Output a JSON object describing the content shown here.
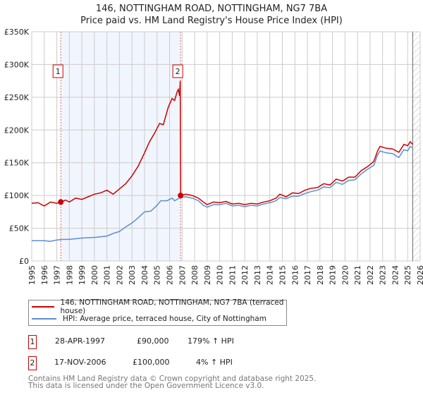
{
  "title": [
    "146, NOTTINGHAM ROAD, NOTTINGHAM, NG7 7BA",
    "Price paid vs. HM Land Registry's House Price Index (HPI)"
  ],
  "legend": [
    {
      "label": "146, NOTTINGHAM ROAD, NOTTINGHAM, NG7 7BA (terraced house)",
      "color": "#cc0000"
    },
    {
      "label": "HPI: Average price, terraced house, City of Nottingham",
      "color": "#5b8fd0"
    }
  ],
  "sales": [
    {
      "num": "1",
      "date": "28-APR-1997",
      "price": "£90,000",
      "hpi": "179% ↑ HPI"
    },
    {
      "num": "2",
      "date": "17-NOV-2006",
      "price": "£100,000",
      "hpi": "4% ↑ HPI"
    }
  ],
  "footer": [
    "Contains HM Land Registry data © Crown copyright and database right 2025.",
    "This data is licensed under the Open Government Licence v3.0."
  ],
  "chart_data": {
    "type": "line",
    "title": "Price paid vs. HM Land Registry's House Price Index (HPI)",
    "xlim": [
      1995,
      2026
    ],
    "ylim": [
      0,
      350000
    ],
    "x_ticks": [
      "1995",
      "1996",
      "1997",
      "1998",
      "1999",
      "2000",
      "2001",
      "2002",
      "2003",
      "2004",
      "2005",
      "2006",
      "2007",
      "2008",
      "2009",
      "2010",
      "2011",
      "2012",
      "2013",
      "2014",
      "2015",
      "2016",
      "2017",
      "2018",
      "2019",
      "2020",
      "2021",
      "2022",
      "2023",
      "2024",
      "2025",
      "2026"
    ],
    "y_ticks": [
      {
        "v": 0,
        "label": "£0"
      },
      {
        "v": 50000,
        "label": "£50K"
      },
      {
        "v": 100000,
        "label": "£100K"
      },
      {
        "v": 150000,
        "label": "£150K"
      },
      {
        "v": 200000,
        "label": "£200K"
      },
      {
        "v": 250000,
        "label": "£250K"
      },
      {
        "v": 300000,
        "label": "£300K"
      },
      {
        "v": 350000,
        "label": "£350K"
      }
    ],
    "shaded_range": [
      1997.32,
      2006.88
    ],
    "forecast_hatch_from": 2025.4,
    "markers": [
      {
        "label": "1",
        "x": 1997.32,
        "y": 90000
      },
      {
        "label": "2",
        "x": 2006.88,
        "y": 100000
      }
    ],
    "series": [
      {
        "name": "146, NOTTINGHAM ROAD, NOTTINGHAM, NG7 7BA (terraced house)",
        "color": "#cc0000",
        "points": [
          [
            1995,
            88000
          ],
          [
            1995.5,
            89000
          ],
          [
            1996,
            84000
          ],
          [
            1996.5,
            90000
          ],
          [
            1997,
            88000
          ],
          [
            1997.32,
            90000
          ],
          [
            1997.7,
            93000
          ],
          [
            1998,
            90000
          ],
          [
            1998.5,
            96000
          ],
          [
            1999,
            94000
          ],
          [
            1999.5,
            98000
          ],
          [
            2000,
            102000
          ],
          [
            2000.5,
            104000
          ],
          [
            2001,
            108000
          ],
          [
            2001.5,
            102000
          ],
          [
            2002,
            110000
          ],
          [
            2002.5,
            118000
          ],
          [
            2003,
            130000
          ],
          [
            2003.5,
            145000
          ],
          [
            2004,
            165000
          ],
          [
            2004.4,
            182000
          ],
          [
            2004.8,
            195000
          ],
          [
            2005.2,
            210000
          ],
          [
            2005.5,
            208000
          ],
          [
            2005.9,
            235000
          ],
          [
            2006.2,
            248000
          ],
          [
            2006.4,
            245000
          ],
          [
            2006.6,
            258000
          ],
          [
            2006.7,
            262000
          ],
          [
            2006.8,
            252000
          ],
          [
            2006.85,
            275000
          ],
          [
            2006.88,
            100000
          ],
          [
            2007.3,
            102000
          ],
          [
            2007.8,
            100000
          ],
          [
            2008.3,
            96000
          ],
          [
            2008.7,
            90000
          ],
          [
            2009,
            86000
          ],
          [
            2009.5,
            90000
          ],
          [
            2010,
            89000
          ],
          [
            2010.5,
            91000
          ],
          [
            2011,
            87000
          ],
          [
            2011.5,
            88000
          ],
          [
            2012,
            86000
          ],
          [
            2012.5,
            88000
          ],
          [
            2013,
            87000
          ],
          [
            2013.5,
            90000
          ],
          [
            2014,
            92000
          ],
          [
            2014.5,
            96000
          ],
          [
            2014.8,
            102000
          ],
          [
            2015.3,
            98000
          ],
          [
            2015.8,
            104000
          ],
          [
            2016.3,
            103000
          ],
          [
            2016.8,
            108000
          ],
          [
            2017.3,
            111000
          ],
          [
            2017.8,
            112000
          ],
          [
            2018.3,
            118000
          ],
          [
            2018.8,
            116000
          ],
          [
            2019.3,
            125000
          ],
          [
            2019.8,
            122000
          ],
          [
            2020.3,
            128000
          ],
          [
            2020.8,
            128000
          ],
          [
            2021.3,
            138000
          ],
          [
            2021.8,
            144000
          ],
          [
            2022.3,
            152000
          ],
          [
            2022.6,
            168000
          ],
          [
            2022.8,
            175000
          ],
          [
            2023.3,
            172000
          ],
          [
            2023.8,
            171000
          ],
          [
            2024.3,
            166000
          ],
          [
            2024.7,
            178000
          ],
          [
            2025,
            176000
          ],
          [
            2025.2,
            182000
          ],
          [
            2025.4,
            178000
          ]
        ]
      },
      {
        "name": "HPI: Average price, terraced house, City of Nottingham",
        "color": "#5b8fd0",
        "points": [
          [
            1995,
            31000
          ],
          [
            1996,
            31000
          ],
          [
            1996.5,
            30000
          ],
          [
            1997,
            32000
          ],
          [
            1997.5,
            33000
          ],
          [
            1998,
            33000
          ],
          [
            1999,
            35000
          ],
          [
            2000,
            36000
          ],
          [
            2000.5,
            37000
          ],
          [
            2001,
            38000
          ],
          [
            2001.5,
            42000
          ],
          [
            2002,
            45000
          ],
          [
            2002.5,
            52000
          ],
          [
            2003,
            58000
          ],
          [
            2003.5,
            66000
          ],
          [
            2004,
            75000
          ],
          [
            2004.5,
            76000
          ],
          [
            2005,
            85000
          ],
          [
            2005.3,
            92000
          ],
          [
            2005.8,
            92000
          ],
          [
            2006.2,
            96000
          ],
          [
            2006.4,
            92000
          ],
          [
            2006.88,
            97000
          ],
          [
            2007.3,
            98000
          ],
          [
            2007.8,
            96000
          ],
          [
            2008.3,
            92000
          ],
          [
            2008.7,
            85000
          ],
          [
            2009,
            82000
          ],
          [
            2009.5,
            86000
          ],
          [
            2010,
            86000
          ],
          [
            2010.5,
            88000
          ],
          [
            2011,
            84000
          ],
          [
            2011.5,
            85000
          ],
          [
            2012,
            83000
          ],
          [
            2012.5,
            85000
          ],
          [
            2013,
            84000
          ],
          [
            2013.5,
            87000
          ],
          [
            2014,
            89000
          ],
          [
            2014.5,
            92000
          ],
          [
            2014.8,
            97000
          ],
          [
            2015.3,
            95000
          ],
          [
            2015.8,
            99000
          ],
          [
            2016.3,
            99000
          ],
          [
            2016.8,
            103000
          ],
          [
            2017.3,
            106000
          ],
          [
            2017.8,
            108000
          ],
          [
            2018.3,
            113000
          ],
          [
            2018.8,
            112000
          ],
          [
            2019.3,
            120000
          ],
          [
            2019.8,
            117000
          ],
          [
            2020.3,
            123000
          ],
          [
            2020.8,
            124000
          ],
          [
            2021.3,
            133000
          ],
          [
            2021.8,
            140000
          ],
          [
            2022.3,
            146000
          ],
          [
            2022.6,
            162000
          ],
          [
            2022.8,
            168000
          ],
          [
            2023.3,
            165000
          ],
          [
            2023.8,
            164000
          ],
          [
            2024.3,
            158000
          ],
          [
            2024.7,
            170000
          ],
          [
            2025,
            168000
          ],
          [
            2025.2,
            175000
          ],
          [
            2025.4,
            173000
          ]
        ]
      }
    ]
  }
}
